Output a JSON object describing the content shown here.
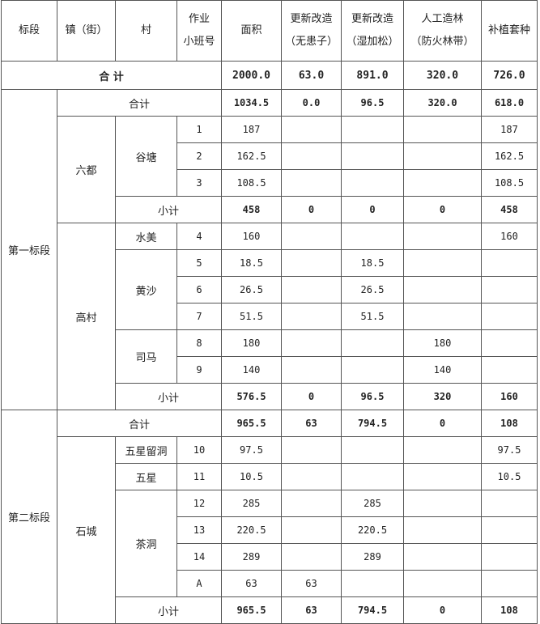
{
  "header": [
    [
      "标段"
    ],
    [
      "镇（街）"
    ],
    [
      "村"
    ],
    [
      "作业",
      "小班号"
    ],
    [
      "面积"
    ],
    [
      "更新改造",
      "（无患子）"
    ],
    [
      "更新改造",
      "（湿加松）"
    ],
    [
      "人工造林",
      "（防火林带）"
    ],
    [
      "补植套种"
    ]
  ],
  "total": {
    "label": "合  计",
    "values": [
      "2000.0",
      "63.0",
      "891.0",
      "320.0",
      "726.0"
    ]
  },
  "sections": [
    {
      "name": "第一标段",
      "total": {
        "label": "合计",
        "values": [
          "1034.5",
          "0.0",
          "96.5",
          "320.0",
          "618.0"
        ]
      },
      "towns": [
        {
          "name": "六都",
          "villages": [
            {
              "name": "谷塘",
              "rows": [
                {
                  "no": "1",
                  "area": "187",
                  "buzhi": "187"
                },
                {
                  "no": "2",
                  "area": "162.5",
                  "buzhi": "162.5"
                },
                {
                  "no": "3",
                  "area": "108.5",
                  "buzhi": "108.5"
                }
              ]
            }
          ],
          "subtotal": {
            "label": "小计",
            "values": [
              "458",
              "0",
              "0",
              "0",
              "458"
            ]
          }
        },
        {
          "name": "高村",
          "villages": [
            {
              "name": "水美",
              "rows": [
                {
                  "no": "4",
                  "area": "160",
                  "buzhi": "160"
                }
              ]
            },
            {
              "name": "黄沙",
              "rows": [
                {
                  "no": "5",
                  "area": "18.5",
                  "shijiasong": "18.5"
                },
                {
                  "no": "6",
                  "area": "26.5",
                  "shijiasong": "26.5"
                },
                {
                  "no": "7",
                  "area": "51.5",
                  "shijiasong": "51.5"
                }
              ]
            },
            {
              "name": "司马",
              "rows": [
                {
                  "no": "8",
                  "area": "180",
                  "fanghuo": "180"
                },
                {
                  "no": "9",
                  "area": "140",
                  "fanghuo": "140"
                }
              ]
            }
          ],
          "subtotal": {
            "label": "小计",
            "values": [
              "576.5",
              "0",
              "96.5",
              "320",
              "160"
            ]
          }
        }
      ]
    },
    {
      "name": "第二标段",
      "total": {
        "label": "合计",
        "values": [
          "965.5",
          "63",
          "794.5",
          "0",
          "108"
        ]
      },
      "towns": [
        {
          "name": "石城",
          "villages": [
            {
              "name": "五星留洞",
              "rows": [
                {
                  "no": "10",
                  "area": "97.5",
                  "buzhi": "97.5"
                }
              ]
            },
            {
              "name": "五星",
              "rows": [
                {
                  "no": "11",
                  "area": "10.5",
                  "buzhi": "10.5"
                }
              ]
            },
            {
              "name": "茶洞",
              "rows": [
                {
                  "no": "12",
                  "area": "285",
                  "shijiasong": "285"
                },
                {
                  "no": "13",
                  "area": "220.5",
                  "shijiasong": "220.5"
                },
                {
                  "no": "14",
                  "area": "289",
                  "shijiasong": "289"
                },
                {
                  "no": "A",
                  "area": "63",
                  "wuhuanzi": "63"
                }
              ]
            }
          ],
          "subtotal": {
            "label": "小计",
            "values": [
              "965.5",
              "63",
              "794.5",
              "0",
              "108"
            ]
          }
        }
      ]
    }
  ]
}
